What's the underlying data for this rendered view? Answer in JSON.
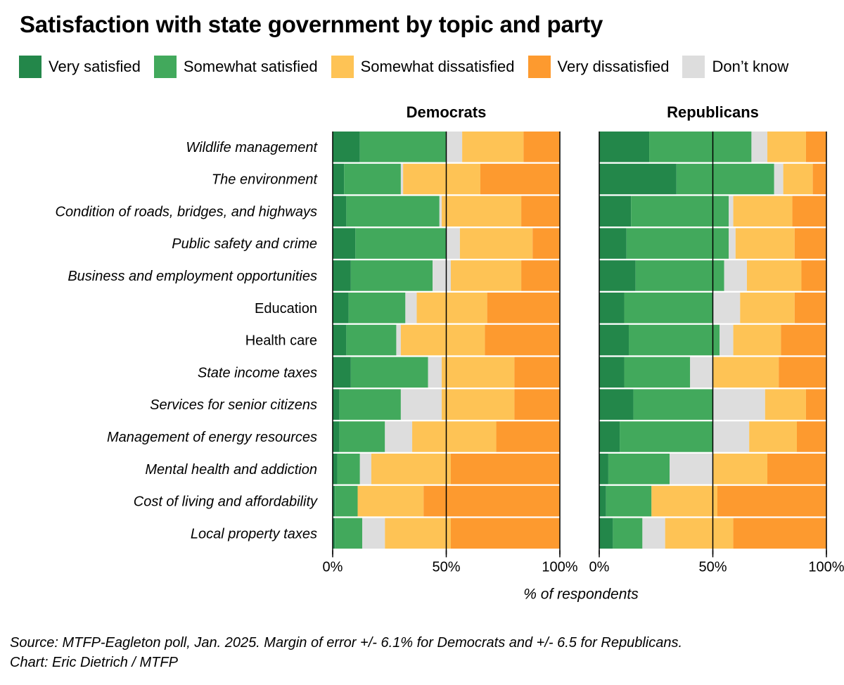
{
  "title": "Satisfaction with state government by topic and party",
  "legend": [
    {
      "key": "very_satisfied",
      "label": "Very satisfied",
      "color": "#23874a"
    },
    {
      "key": "somewhat_satisfied",
      "label": "Somewhat satisfied",
      "color": "#42a95c"
    },
    {
      "key": "somewhat_dissatisfied",
      "label": "Somewhat dissatisfied",
      "color": "#fec355"
    },
    {
      "key": "very_dissatisfied",
      "label": "Very dissatisfied",
      "color": "#fd9a2f"
    },
    {
      "key": "dont_know",
      "label": "Don’t know",
      "color": "#dddddd"
    }
  ],
  "x_label": "% of respondents",
  "source_line1": "Source: MTFP-Eagleton poll, Jan. 2025. Margin of error +/- 6.1% for Democrats and +/- 6.5 for Republicans.",
  "source_line2": "Chart: Eric Dietrich / MTFP",
  "chart_data": {
    "type": "bar",
    "orientation": "horizontal",
    "stacked": true,
    "stack_order": [
      "very_satisfied",
      "somewhat_satisfied",
      "dont_know",
      "somewhat_dissatisfied",
      "very_dissatisfied"
    ],
    "xlim": [
      0,
      100
    ],
    "x_ticks": [
      "0%",
      "50%",
      "100%"
    ],
    "reference_line": 50,
    "categories": [
      {
        "label": "Wildlife management",
        "italic": true
      },
      {
        "label": "The environment",
        "italic": true
      },
      {
        "label": "Condition of roads, bridges, and highways",
        "italic": true
      },
      {
        "label": "Public safety and crime",
        "italic": true
      },
      {
        "label": "Business and employment opportunities",
        "italic": true
      },
      {
        "label": "Education",
        "italic": false
      },
      {
        "label": "Health care",
        "italic": false
      },
      {
        "label": "State income taxes",
        "italic": true
      },
      {
        "label": "Services for senior citizens",
        "italic": true
      },
      {
        "label": "Management of energy resources",
        "italic": true
      },
      {
        "label": "Mental health and addiction",
        "italic": true
      },
      {
        "label": "Cost of living and affordability",
        "italic": true
      },
      {
        "label": "Local property taxes",
        "italic": true
      }
    ],
    "panels": [
      {
        "name": "Democrats",
        "series": [
          {
            "key": "very_satisfied",
            "values": [
              12,
              5,
              6,
              10,
              8,
              7,
              6,
              8,
              3,
              3,
              2,
              1,
              1
            ]
          },
          {
            "key": "somewhat_satisfied",
            "values": [
              38,
              25,
              41,
              40,
              36,
              25,
              22,
              34,
              27,
              20,
              10,
              10,
              12
            ]
          },
          {
            "key": "dont_know",
            "values": [
              7,
              1,
              1,
              6,
              8,
              5,
              2,
              6,
              18,
              12,
              5,
              0,
              10
            ]
          },
          {
            "key": "somewhat_dissatisfied",
            "values": [
              27,
              34,
              35,
              32,
              31,
              31,
              37,
              32,
              32,
              37,
              35,
              29,
              29
            ]
          },
          {
            "key": "very_dissatisfied",
            "values": [
              16,
              35,
              17,
              12,
              17,
              32,
              33,
              20,
              20,
              28,
              48,
              60,
              48
            ]
          }
        ]
      },
      {
        "name": "Republicans",
        "series": [
          {
            "key": "very_satisfied",
            "values": [
              22,
              34,
              14,
              12,
              16,
              11,
              13,
              11,
              15,
              9,
              4,
              3,
              6
            ]
          },
          {
            "key": "somewhat_satisfied",
            "values": [
              45,
              43,
              43,
              45,
              39,
              39,
              40,
              29,
              35,
              41,
              27,
              20,
              13
            ]
          },
          {
            "key": "dont_know",
            "values": [
              7,
              4,
              2,
              3,
              10,
              12,
              6,
              10,
              23,
              16,
              19,
              0,
              10
            ]
          },
          {
            "key": "somewhat_dissatisfied",
            "values": [
              17,
              13,
              26,
              26,
              24,
              24,
              21,
              29,
              18,
              21,
              24,
              29,
              30
            ]
          },
          {
            "key": "very_dissatisfied",
            "values": [
              9,
              6,
              15,
              14,
              11,
              14,
              20,
              21,
              9,
              13,
              26,
              48,
              41
            ]
          }
        ]
      }
    ]
  }
}
